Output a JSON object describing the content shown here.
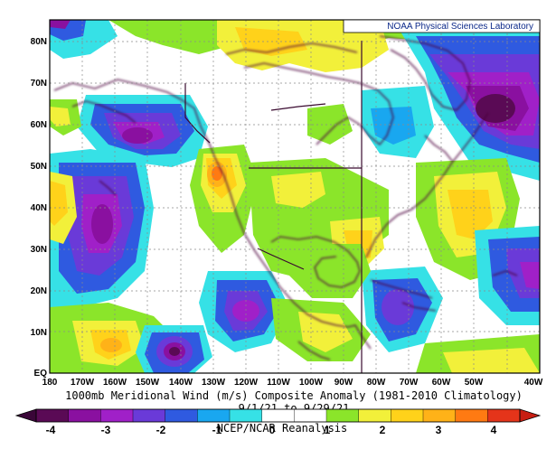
{
  "map": {
    "credit": "NOAA Physical Sciences Laboratory",
    "title": "1000mb Meridional Wind (m/s) Composite Anomaly (1981-2010 Climatology)",
    "date_range": "9/1/21 to 9/29/21",
    "source": "NCEP/NCAR Reanalysis",
    "lat_labels": [
      "EQ",
      "10N",
      "20N",
      "30N",
      "40N",
      "50N",
      "60N",
      "70N",
      "80N"
    ],
    "lon_labels": [
      "180",
      "170W",
      "160W",
      "150W",
      "140W",
      "130W",
      "120W",
      "110W",
      "100W",
      "90W",
      "80W",
      "70W",
      "60W",
      "50W",
      "40W"
    ]
  },
  "colorbar": {
    "labels": [
      "-4",
      "-3",
      "-2",
      "-1",
      "0",
      "1",
      "2",
      "3",
      "4"
    ],
    "colors": [
      "#5a0a55",
      "#8a10a0",
      "#a020c8",
      "#6a3ad8",
      "#2f5ae0",
      "#19a7f0",
      "#36e1e6",
      "#ffffff",
      "#ffffff",
      "#8be52a",
      "#f2f03a",
      "#ffd21a",
      "#ffb218",
      "#ff7a12",
      "#e5341a"
    ]
  }
}
